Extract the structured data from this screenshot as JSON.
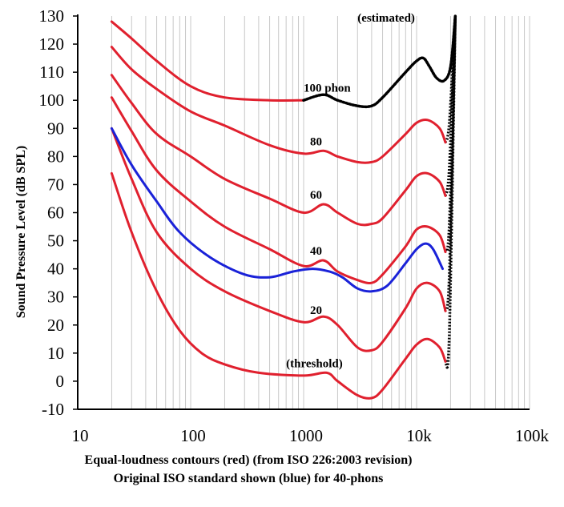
{
  "chart_data": {
    "type": "line",
    "xscale": "log",
    "xlim": [
      10,
      100000
    ],
    "ylim": [
      -10,
      130
    ],
    "ylabel": "Sound Pressure Level (dB SPL)",
    "x_tick_labels": [
      "10",
      "100",
      "1000",
      "10k",
      "100k"
    ],
    "x_tick_values": [
      10,
      100,
      1000,
      10000,
      100000
    ],
    "y_ticks": [
      -10,
      0,
      10,
      20,
      30,
      40,
      50,
      60,
      70,
      80,
      90,
      100,
      110,
      120,
      130
    ],
    "grid": "vertical log gridlines",
    "caption_lines": [
      "Equal-loudness contours (red) (from ISO 226:2003 revision)",
      "Original ISO standard shown (blue) for 40-phons"
    ],
    "colors": {
      "iso226": "#e0202e",
      "original": "#1a22d8",
      "estimated": "#000000"
    },
    "series": [
      {
        "label": "(threshold)",
        "color": "red",
        "points": [
          [
            20,
            74
          ],
          [
            30,
            53
          ],
          [
            50,
            32
          ],
          [
            80,
            18
          ],
          [
            125,
            10
          ],
          [
            200,
            6
          ],
          [
            400,
            3
          ],
          [
            1000,
            2
          ],
          [
            1600,
            3
          ],
          [
            2000,
            0
          ],
          [
            3000,
            -5
          ],
          [
            4000,
            -6
          ],
          [
            5000,
            -3
          ],
          [
            8000,
            8
          ],
          [
            10000,
            13
          ],
          [
            12500,
            15
          ],
          [
            16000,
            12
          ],
          [
            18000,
            7
          ]
        ]
      },
      {
        "label": "20",
        "color": "red",
        "points": [
          [
            20,
            90
          ],
          [
            30,
            72
          ],
          [
            50,
            53
          ],
          [
            100,
            40
          ],
          [
            200,
            32
          ],
          [
            500,
            25
          ],
          [
            1000,
            21
          ],
          [
            1500,
            23
          ],
          [
            2000,
            20
          ],
          [
            3000,
            12
          ],
          [
            4000,
            11
          ],
          [
            5000,
            14
          ],
          [
            8000,
            26
          ],
          [
            10000,
            33
          ],
          [
            12500,
            35
          ],
          [
            16000,
            32
          ],
          [
            18000,
            25
          ]
        ]
      },
      {
        "label": "40",
        "color": "red",
        "points": [
          [
            20,
            101
          ],
          [
            30,
            89
          ],
          [
            50,
            75
          ],
          [
            100,
            64
          ],
          [
            200,
            55
          ],
          [
            500,
            47
          ],
          [
            1000,
            41
          ],
          [
            1500,
            43
          ],
          [
            2000,
            39
          ],
          [
            3000,
            36
          ],
          [
            4000,
            35
          ],
          [
            5000,
            38
          ],
          [
            8000,
            48
          ],
          [
            10000,
            54
          ],
          [
            12500,
            55
          ],
          [
            16000,
            52
          ],
          [
            18000,
            46
          ]
        ]
      },
      {
        "label": "60",
        "color": "red",
        "points": [
          [
            20,
            109
          ],
          [
            30,
            99
          ],
          [
            50,
            88
          ],
          [
            100,
            80
          ],
          [
            200,
            72
          ],
          [
            500,
            65
          ],
          [
            1000,
            60
          ],
          [
            1500,
            63
          ],
          [
            2000,
            60
          ],
          [
            3000,
            56
          ],
          [
            4000,
            56
          ],
          [
            5000,
            58
          ],
          [
            8000,
            68
          ],
          [
            10000,
            73
          ],
          [
            12500,
            74
          ],
          [
            16000,
            71
          ],
          [
            18000,
            66
          ]
        ]
      },
      {
        "label": "80",
        "color": "red",
        "points": [
          [
            20,
            119
          ],
          [
            30,
            111
          ],
          [
            50,
            104
          ],
          [
            100,
            96
          ],
          [
            200,
            91
          ],
          [
            500,
            84
          ],
          [
            1000,
            81
          ],
          [
            1500,
            82
          ],
          [
            2000,
            80
          ],
          [
            3000,
            78
          ],
          [
            4000,
            78
          ],
          [
            5000,
            80
          ],
          [
            8000,
            88
          ],
          [
            10000,
            92
          ],
          [
            12500,
            93
          ],
          [
            16000,
            90
          ],
          [
            18000,
            85
          ]
        ]
      },
      {
        "label": "100 phon",
        "color": "red",
        "points": [
          [
            20,
            128
          ],
          [
            30,
            122
          ],
          [
            50,
            114
          ],
          [
            100,
            105
          ],
          [
            200,
            101
          ],
          [
            500,
            100
          ],
          [
            1000,
            100
          ]
        ]
      },
      {
        "label": "(estimated)",
        "color": "black-dotted",
        "points": [
          [
            1000,
            100
          ],
          [
            1500,
            102
          ],
          [
            2000,
            100
          ],
          [
            3000,
            98
          ],
          [
            4000,
            98
          ],
          [
            5000,
            101
          ],
          [
            8000,
            110
          ],
          [
            10000,
            114
          ],
          [
            11500,
            115
          ],
          [
            13000,
            112
          ],
          [
            15000,
            108
          ],
          [
            17500,
            107
          ],
          [
            20000,
            112
          ],
          [
            22000,
            130
          ]
        ]
      },
      {
        "label": "Original ISO (40 phon)",
        "color": "blue",
        "points": [
          [
            20,
            90
          ],
          [
            30,
            77
          ],
          [
            50,
            64
          ],
          [
            80,
            53
          ],
          [
            150,
            44
          ],
          [
            300,
            38
          ],
          [
            500,
            37
          ],
          [
            800,
            39
          ],
          [
            1200,
            40
          ],
          [
            1700,
            39
          ],
          [
            2200,
            37
          ],
          [
            3000,
            33
          ],
          [
            4000,
            32
          ],
          [
            5500,
            34
          ],
          [
            8000,
            42
          ],
          [
            10000,
            47
          ],
          [
            12000,
            49
          ],
          [
            14000,
            47
          ],
          [
            17000,
            40
          ]
        ]
      }
    ],
    "high_freq_tails": [
      {
        "from": [
          18000,
          85
        ],
        "peak": [
          19500,
          92
        ],
        "to": [
          22000,
          130
        ]
      },
      {
        "from": [
          18000,
          66
        ],
        "peak": [
          19500,
          76
        ],
        "to": [
          22000,
          130
        ]
      },
      {
        "from": [
          18000,
          46
        ],
        "peak": [
          19500,
          56
        ],
        "to": [
          22000,
          130
        ]
      },
      {
        "from": [
          18000,
          25
        ],
        "peak": [
          19500,
          38
        ],
        "to": [
          22000,
          130
        ]
      },
      {
        "from": [
          18000,
          7
        ],
        "peak": [
          19500,
          17
        ],
        "to": [
          22000,
          130
        ]
      }
    ],
    "annotations": [
      {
        "text": "(estimated)",
        "x": 3000,
        "y": 128
      },
      {
        "text": "100 phon",
        "x": 1000,
        "y": 103
      },
      {
        "text": "80",
        "x": 1000,
        "y": 84
      },
      {
        "text": "60",
        "x": 1000,
        "y": 65
      },
      {
        "text": "40",
        "x": 1000,
        "y": 45
      },
      {
        "text": "20",
        "x": 1000,
        "y": 24
      },
      {
        "text": "(threshold)",
        "x": 700,
        "y": 5
      }
    ]
  }
}
